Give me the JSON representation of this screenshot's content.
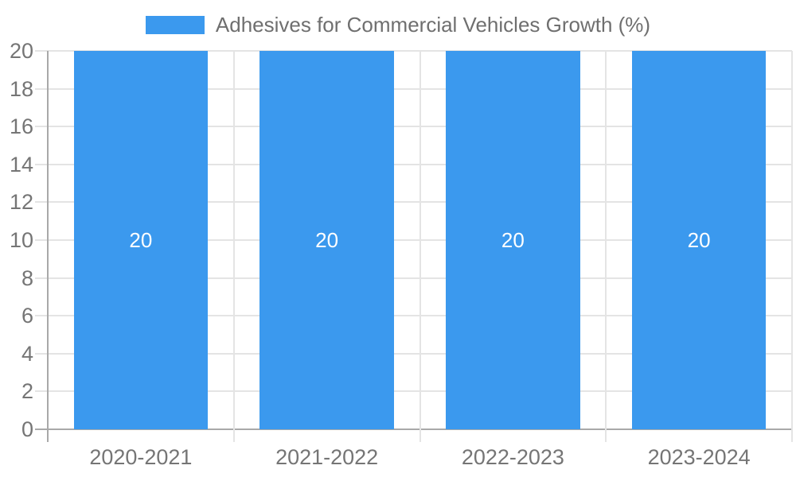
{
  "chart_data": {
    "type": "bar",
    "title": "",
    "legend": {
      "label": "Adhesives for Commercial Vehicles Growth (%)",
      "position": "top"
    },
    "categories": [
      "2020-2021",
      "2021-2022",
      "2022-2023",
      "2023-2024"
    ],
    "series": [
      {
        "name": "Adhesives for Commercial Vehicles Growth (%)",
        "values": [
          20,
          20,
          20,
          20
        ]
      }
    ],
    "bar_value_labels": [
      "20",
      "20",
      "20",
      "20"
    ],
    "xlabel": "",
    "ylabel": "",
    "ylim": [
      0,
      20
    ],
    "ytick_step": 2,
    "yticks": [
      0,
      2,
      4,
      6,
      8,
      10,
      12,
      14,
      16,
      18,
      20
    ],
    "grid": true,
    "legend_position": "top-center",
    "colors": {
      "bar": "#3b99ee",
      "gridline": "#e4e4e4",
      "axis": "#a9a9a9",
      "tick_text": "#757575",
      "legend_text": "#6f6f6f",
      "value_label_text": "#ffffff"
    }
  }
}
